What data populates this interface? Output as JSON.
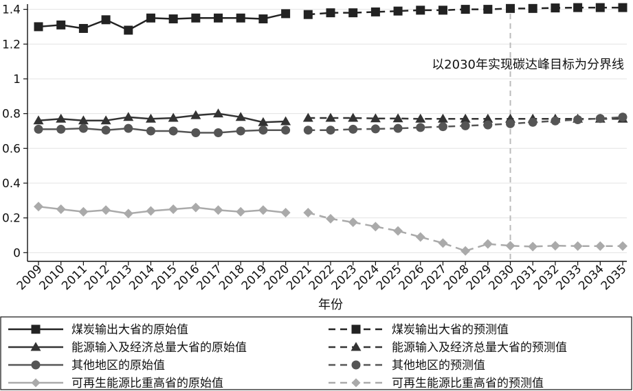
{
  "chart_data": {
    "type": "line",
    "xlabel": "年份",
    "ylabel": "",
    "ylim": [
      -0.05,
      1.43
    ],
    "yticks": [
      0,
      0.2,
      0.4,
      0.6,
      0.8,
      1,
      1.2,
      1.4
    ],
    "ytick_labels": [
      "0",
      "0.2",
      "0.4",
      "0.6",
      "0.8",
      "1",
      "1.2",
      "1.4"
    ],
    "x": [
      "2009",
      "2010",
      "2011",
      "2012",
      "2013",
      "2014",
      "2015",
      "2016",
      "2017",
      "2018",
      "2019",
      "2020",
      "2021",
      "2022",
      "2023",
      "2024",
      "2025",
      "2026",
      "2027",
      "2028",
      "2029",
      "2030",
      "2031",
      "2032",
      "2033",
      "2034",
      "2035"
    ],
    "grid": "horizontal",
    "legend_position": "bottom",
    "annotation": {
      "text": "以2030年实现碳达峰目标为分界线",
      "x": "2030"
    },
    "series": [
      {
        "name": "煤炭输出大省的原始值",
        "marker": "square",
        "style": "solid",
        "color": "#222222",
        "x": [
          "2009",
          "2010",
          "2011",
          "2012",
          "2013",
          "2014",
          "2015",
          "2016",
          "2017",
          "2018",
          "2019",
          "2020"
        ],
        "values": [
          1.3,
          1.31,
          1.29,
          1.34,
          1.28,
          1.35,
          1.345,
          1.35,
          1.35,
          1.35,
          1.345,
          1.375
        ]
      },
      {
        "name": "煤炭输出大省的预测值",
        "marker": "square",
        "style": "dashed",
        "color": "#222222",
        "x": [
          "2021",
          "2022",
          "2023",
          "2024",
          "2025",
          "2026",
          "2027",
          "2028",
          "2029",
          "2030",
          "2031",
          "2032",
          "2033",
          "2034",
          "2035"
        ],
        "values": [
          1.37,
          1.38,
          1.38,
          1.385,
          1.39,
          1.395,
          1.395,
          1.4,
          1.4,
          1.405,
          1.405,
          1.408,
          1.41,
          1.41,
          1.41
        ]
      },
      {
        "name": "能源输入及经济总量大省的原始值",
        "marker": "triangle",
        "style": "solid",
        "color": "#333333",
        "x": [
          "2009",
          "2010",
          "2011",
          "2012",
          "2013",
          "2014",
          "2015",
          "2016",
          "2017",
          "2018",
          "2019",
          "2020"
        ],
        "values": [
          0.76,
          0.77,
          0.76,
          0.76,
          0.78,
          0.77,
          0.775,
          0.79,
          0.8,
          0.78,
          0.75,
          0.755
        ]
      },
      {
        "name": "能源输入及经济总量大省的预测值",
        "marker": "triangle",
        "style": "dashed",
        "color": "#333333",
        "x": [
          "2021",
          "2022",
          "2023",
          "2024",
          "2025",
          "2026",
          "2027",
          "2028",
          "2029",
          "2030",
          "2031",
          "2032",
          "2033",
          "2034",
          "2035"
        ],
        "values": [
          0.775,
          0.775,
          0.775,
          0.772,
          0.772,
          0.77,
          0.77,
          0.77,
          0.77,
          0.77,
          0.77,
          0.77,
          0.77,
          0.77,
          0.77
        ]
      },
      {
        "name": "其他地区的原始值",
        "marker": "circle",
        "style": "solid",
        "color": "#555555",
        "x": [
          "2009",
          "2010",
          "2011",
          "2012",
          "2013",
          "2014",
          "2015",
          "2016",
          "2017",
          "2018",
          "2019",
          "2020"
        ],
        "values": [
          0.71,
          0.71,
          0.715,
          0.705,
          0.715,
          0.7,
          0.7,
          0.69,
          0.69,
          0.7,
          0.705,
          0.705
        ]
      },
      {
        "name": "其他地区的预测值",
        "marker": "circle",
        "style": "dashed",
        "color": "#555555",
        "x": [
          "2021",
          "2022",
          "2023",
          "2024",
          "2025",
          "2026",
          "2027",
          "2028",
          "2029",
          "2030",
          "2031",
          "2032",
          "2033",
          "2034",
          "2035"
        ],
        "values": [
          0.705,
          0.705,
          0.71,
          0.712,
          0.715,
          0.72,
          0.725,
          0.73,
          0.735,
          0.742,
          0.75,
          0.758,
          0.765,
          0.772,
          0.78
        ]
      },
      {
        "name": "可再生能源比重高省的原始值",
        "marker": "diamond",
        "style": "solid",
        "color": "#aaaaaa",
        "x": [
          "2009",
          "2010",
          "2011",
          "2012",
          "2013",
          "2014",
          "2015",
          "2016",
          "2017",
          "2018",
          "2019",
          "2020"
        ],
        "values": [
          0.265,
          0.25,
          0.235,
          0.245,
          0.225,
          0.24,
          0.25,
          0.26,
          0.245,
          0.235,
          0.245,
          0.23
        ]
      },
      {
        "name": "可再生能源比重高省的预测值",
        "marker": "diamond",
        "style": "dashed",
        "color": "#aaaaaa",
        "x": [
          "2021",
          "2022",
          "2023",
          "2024",
          "2025",
          "2026",
          "2027",
          "2028",
          "2029",
          "2030",
          "2031",
          "2032",
          "2033",
          "2034",
          "2035"
        ],
        "values": [
          0.23,
          0.195,
          0.175,
          0.15,
          0.125,
          0.09,
          0.055,
          0.01,
          0.05,
          0.04,
          0.035,
          0.04,
          0.038,
          0.038,
          0.038
        ]
      }
    ]
  }
}
